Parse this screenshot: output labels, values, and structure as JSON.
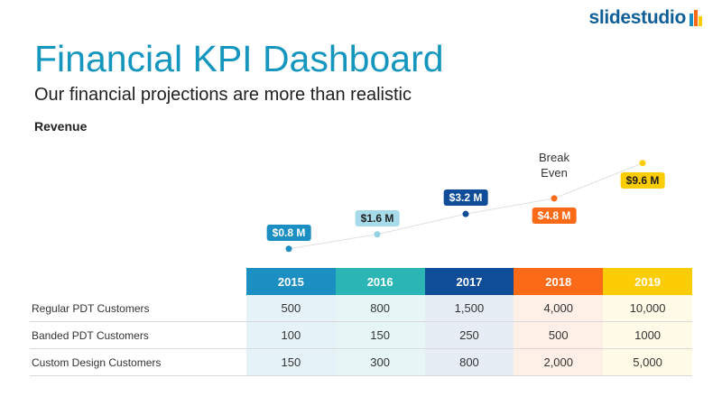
{
  "header": {
    "title": "Financial KPI Dashboard",
    "subtitle": "Our financial projections are more than realistic",
    "section_label": "Revenue",
    "logo_text": "slidestudio"
  },
  "colors": {
    "title": "#1496be",
    "year_2015": "#1b8fc1",
    "year_2016": "#2cb5b5",
    "year_2017": "#0f4d98",
    "year_2018": "#fb6a16",
    "year_2019": "#fccc04",
    "line": "#e0e0e0"
  },
  "chart_data": {
    "type": "line",
    "title": "Revenue",
    "categories": [
      "2015",
      "2016",
      "2017",
      "2018",
      "2019"
    ],
    "series": [
      {
        "values": [
          0.8,
          1.6,
          3.2,
          4.8,
          9.6
        ]
      }
    ],
    "data_labels": [
      "$0.8 M",
      "$1.6 M",
      "$3.2 M",
      "$4.8 M",
      "$9.6 M"
    ],
    "point_colors": [
      "#1b8fc1",
      "#94d1e3",
      "#0f4d98",
      "#fb6a16",
      "#fccc04"
    ],
    "label_colors": [
      "#1b8fc1",
      "#a7dbea",
      "#0f4d98",
      "#fb6a16",
      "#fccc04"
    ],
    "label_text_colors": [
      "#ffffff",
      "#1f1f1f",
      "#ffffff",
      "#ffffff",
      "#1f1f1f"
    ],
    "annotation": {
      "category": "2018",
      "line1": "Break",
      "line2": "Even"
    },
    "grid": false,
    "legend": "none"
  },
  "table": {
    "years": [
      "2015",
      "2016",
      "2017",
      "2018",
      "2019"
    ],
    "header_colors": [
      "#1b8fc1",
      "#2cb5b5",
      "#0f4d98",
      "#fb6a16",
      "#fccc04"
    ],
    "cell_bg_colors": [
      "#e5f3f9",
      "#e6f6f6",
      "#e7edf5",
      "#fef0e6",
      "#fffbe6"
    ],
    "rows": [
      {
        "label": "Regular PDT Customers",
        "values": [
          "500",
          "800",
          "1,500",
          "4,000",
          "10,000"
        ]
      },
      {
        "label": "Banded PDT Customers",
        "values": [
          "100",
          "150",
          "250",
          "500",
          "1000"
        ]
      },
      {
        "label": "Custom Design Customers",
        "values": [
          "150",
          "300",
          "800",
          "2,000",
          "5,000"
        ]
      }
    ]
  }
}
